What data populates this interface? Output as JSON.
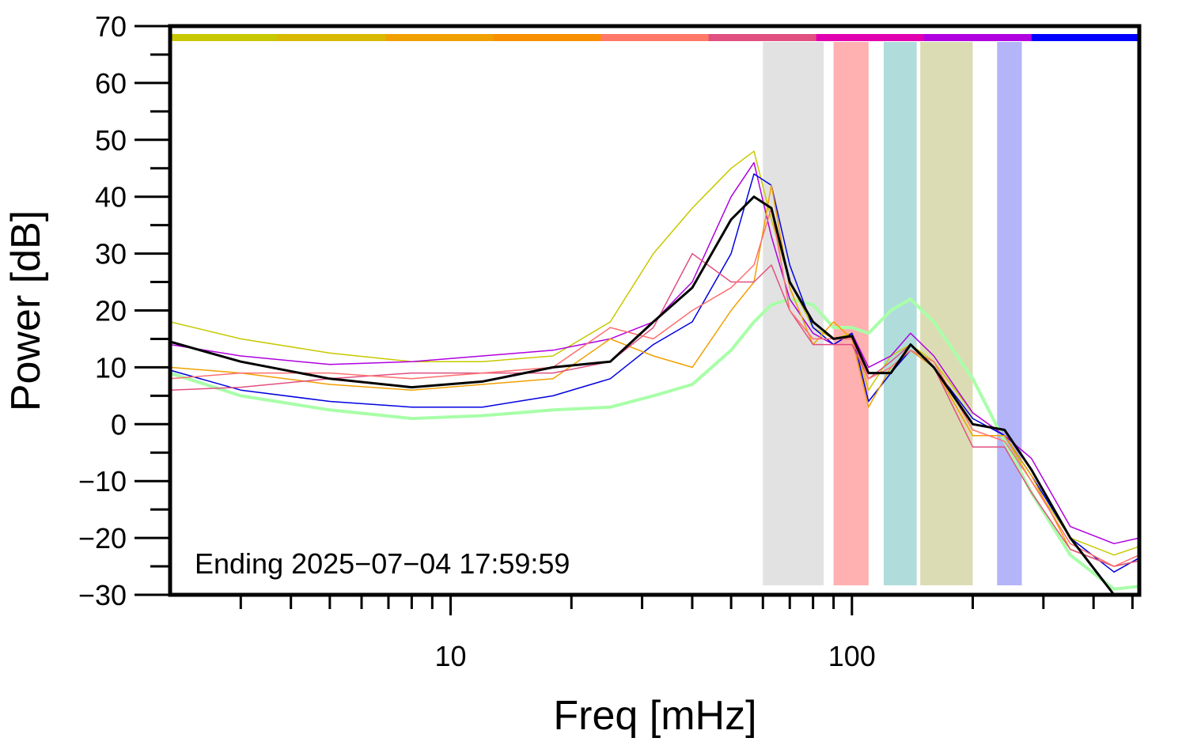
{
  "chart_data": {
    "type": "line",
    "xlabel": "Freq [mHz]",
    "ylabel": "Power [dB]",
    "annotation": "Ending 2025−07−04 17:59:59",
    "log_x": true,
    "xlim": [
      2,
      520
    ],
    "ylim": [
      -30,
      70
    ],
    "xticks": [
      10,
      100
    ],
    "xminorticks": [
      3,
      4,
      5,
      6,
      7,
      8,
      9,
      20,
      30,
      40,
      50,
      60,
      70,
      80,
      90,
      200,
      300,
      400,
      500
    ],
    "yticks": [
      {
        "value": -30,
        "label": "−30"
      },
      {
        "value": -20,
        "label": "−20"
      },
      {
        "value": -10,
        "label": "−10"
      },
      0,
      10,
      20,
      30,
      40,
      50,
      60,
      70
    ],
    "yminorticks": [
      -25,
      -15,
      -5,
      5,
      15,
      25,
      35,
      45,
      55,
      65
    ],
    "top_bar_colors": [
      "#c8c800",
      "#d8b800",
      "#f0a000",
      "#f89000",
      "#ff7868",
      "#e05080",
      "#e000b0",
      "#b000e0",
      "#0000ff"
    ],
    "shaded_bands": [
      {
        "range": [
          60,
          85
        ],
        "color": "#e2e2e2"
      },
      {
        "range": [
          90,
          110
        ],
        "color": "#ffb0b0"
      },
      {
        "range": [
          120,
          145
        ],
        "color": "#b0dcdc"
      },
      {
        "range": [
          148,
          200
        ],
        "color": "#dcdcb4"
      },
      {
        "range": [
          230,
          265
        ],
        "color": "#b4b4f8"
      }
    ],
    "x": [
      2,
      3,
      5,
      8,
      12,
      18,
      25,
      32,
      40,
      50,
      57,
      63,
      70,
      80,
      90,
      100,
      110,
      125,
      140,
      160,
      200,
      240,
      280,
      350,
      450,
      520
    ],
    "series": [
      {
        "color": "#a8ffa8",
        "width": 4,
        "values": [
          9,
          5,
          2.5,
          1,
          1.5,
          2.5,
          3,
          5,
          7,
          13,
          18,
          21,
          22,
          21,
          17,
          17,
          16,
          20,
          22,
          18,
          8,
          -3,
          -12,
          -23,
          -29,
          -28.5
        ]
      },
      {
        "color": "#c8c800",
        "width": 1.5,
        "values": [
          18,
          15,
          12.5,
          11,
          11,
          12,
          18,
          30,
          38,
          45,
          48,
          36,
          25,
          17,
          15,
          16,
          6,
          12,
          14,
          11,
          2,
          -2,
          -10,
          -20,
          -23,
          -21.5
        ]
      },
      {
        "color": "#b000e0",
        "width": 1.5,
        "values": [
          14,
          12,
          10.5,
          11,
          12,
          13,
          15,
          18,
          25,
          40,
          46,
          33,
          22,
          16,
          14,
          16,
          10,
          12,
          16,
          12,
          2,
          -2,
          -6,
          -18,
          -21,
          -20
        ]
      },
      {
        "color": "#0000e0",
        "width": 1.5,
        "values": [
          9.5,
          6,
          4,
          3,
          3,
          5,
          8,
          14,
          18,
          30,
          44,
          42,
          28,
          17,
          14,
          16,
          4,
          9,
          13,
          10,
          1,
          -2,
          -9,
          -20,
          -26,
          -23.5
        ]
      },
      {
        "color": "#f0a000",
        "width": 1.5,
        "values": [
          10,
          9,
          7,
          6,
          7,
          8,
          15,
          12,
          10,
          20,
          25,
          42,
          24,
          14,
          18,
          15,
          3,
          10,
          13,
          10,
          -2,
          -2,
          -9,
          -22,
          -25,
          -24
        ]
      },
      {
        "color": "#e05080",
        "width": 1.5,
        "values": [
          6,
          6.5,
          8,
          9,
          9,
          9,
          11,
          17,
          30,
          25,
          25,
          28,
          20,
          14,
          14,
          14,
          8,
          11,
          14,
          10,
          -4,
          -4,
          -12,
          -22,
          -25,
          -24
        ]
      },
      {
        "color": "#ff7070",
        "width": 1.5,
        "values": [
          8,
          9,
          9,
          8,
          9,
          10,
          17,
          15,
          20,
          24,
          28,
          38,
          20,
          15,
          15,
          15,
          8,
          10,
          13,
          11,
          -1,
          -3,
          -10,
          -21,
          -25,
          -23
        ]
      },
      {
        "color": "#000000",
        "width": 3,
        "values": [
          14.5,
          11,
          8,
          6.5,
          7.5,
          10,
          11,
          18,
          24,
          36,
          40,
          38,
          25,
          18,
          15,
          15.5,
          9,
          9,
          14,
          10,
          0,
          -1,
          -8,
          -20,
          -30,
          null
        ]
      }
    ]
  }
}
